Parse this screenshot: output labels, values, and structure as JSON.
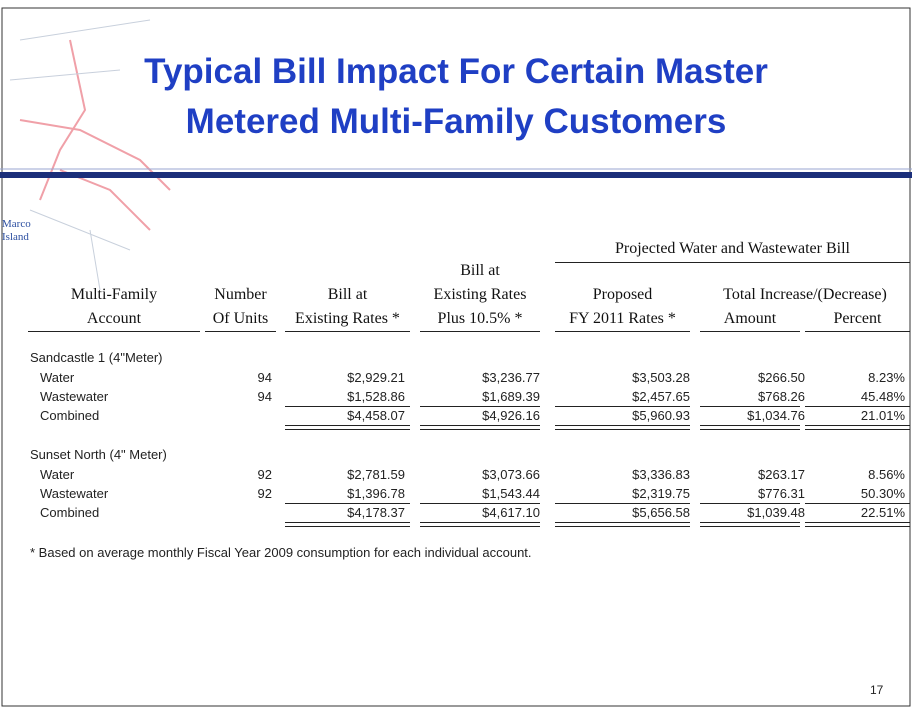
{
  "title": [
    "Typical Bill Impact For Certain Master",
    "Metered Multi-Family Customers"
  ],
  "map_label": [
    "Marco",
    "Island"
  ],
  "table": {
    "group_header": "Projected Water and Wastewater Bill",
    "columns": [
      [
        "Multi-Family",
        "Account"
      ],
      [
        "Number",
        "Of Units"
      ],
      [
        "Bill at",
        "Existing Rates *"
      ],
      [
        "Bill at",
        "Existing Rates",
        "Plus 10.5% *"
      ],
      [
        "Proposed",
        "FY 2011 Rates *"
      ],
      [
        "Total Increase/(Decrease)",
        "Amount"
      ],
      [
        "Percent"
      ]
    ],
    "sections": [
      {
        "name": "Sandcastle 1 (4\"Meter)",
        "rows": [
          {
            "label": "Water",
            "cells": [
              "94",
              "$2,929.21",
              "$3,236.77",
              "$3,503.28",
              "$266.50",
              "8.23%"
            ]
          },
          {
            "label": "Wastewater",
            "cells": [
              "94",
              "$1,528.86",
              "$1,689.39",
              "$2,457.65",
              "$768.26",
              "45.48%"
            ]
          },
          {
            "label": "Combined",
            "cells": [
              "",
              "$4,458.07",
              "$4,926.16",
              "$5,960.93",
              "$1,034.76",
              "21.01%"
            ]
          }
        ]
      },
      {
        "name": "Sunset North (4\" Meter)",
        "rows": [
          {
            "label": "Water",
            "cells": [
              "92",
              "$2,781.59",
              "$3,073.66",
              "$3,336.83",
              "$263.17",
              "8.56%"
            ]
          },
          {
            "label": "Wastewater",
            "cells": [
              "92",
              "$1,396.78",
              "$1,543.44",
              "$2,319.75",
              "$776.31",
              "50.30%"
            ]
          },
          {
            "label": "Combined",
            "cells": [
              "",
              "$4,178.37",
              "$4,617.10",
              "$5,656.58",
              "$1,039.48",
              "22.51%"
            ]
          }
        ]
      }
    ]
  },
  "footnote": "* Based on average monthly Fiscal Year 2009 consumption for each individual account.",
  "page_number": "17"
}
